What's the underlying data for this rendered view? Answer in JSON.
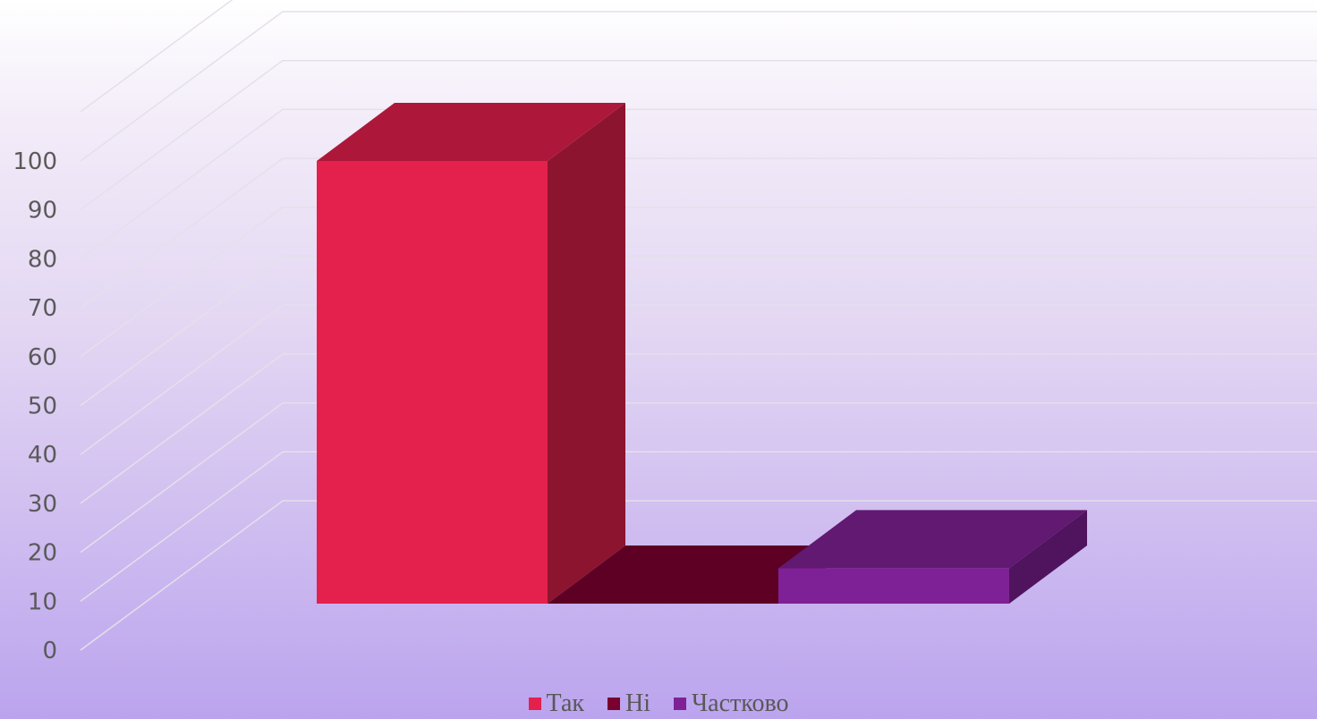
{
  "chart_data": {
    "type": "bar",
    "subtype": "3d-column",
    "categories": [
      "Так",
      "Ні",
      "Частково"
    ],
    "values": [
      100,
      0,
      8
    ],
    "colors": [
      "#e4204c",
      "#7a0030",
      "#7f2196"
    ],
    "ylim": [
      0,
      100
    ],
    "yticks": [
      "0",
      "10",
      "20",
      "30",
      "40",
      "50",
      "60",
      "70",
      "80",
      "90",
      "100"
    ],
    "grid": true,
    "legend_position": "bottom",
    "legend": [
      {
        "label": "Так",
        "color": "#e4204c"
      },
      {
        "label": "Ні",
        "color": "#7a0030"
      },
      {
        "label": "Частково",
        "color": "#7f2196"
      }
    ]
  }
}
